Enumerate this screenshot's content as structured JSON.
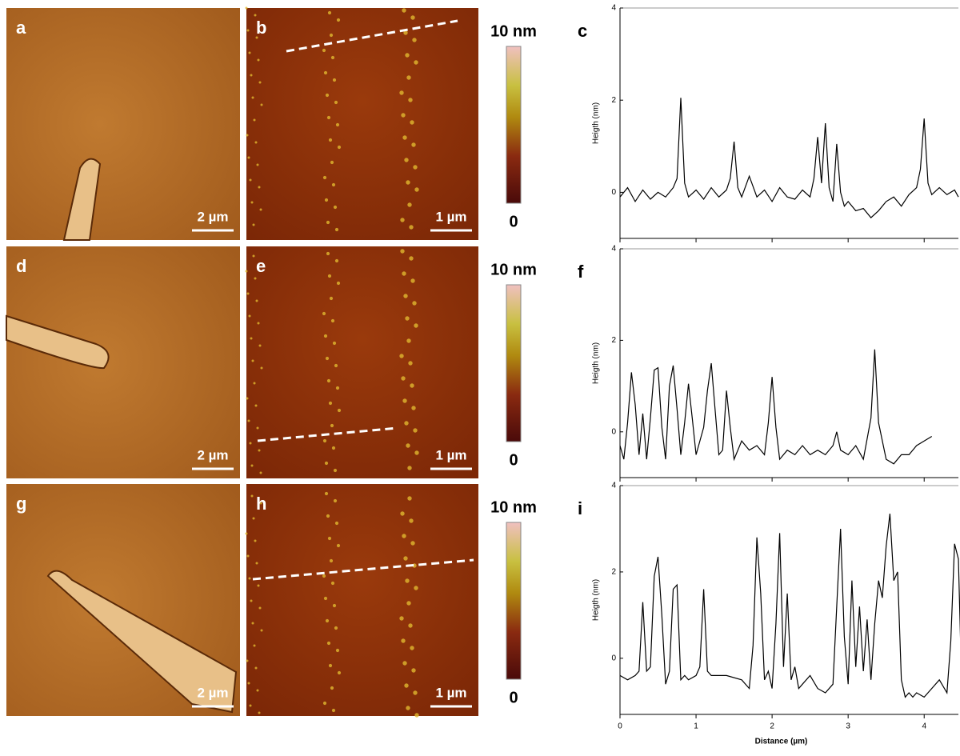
{
  "panels": [
    {
      "letter": "a",
      "scale_bar": "2 µm"
    },
    {
      "letter": "b",
      "scale_bar": "1 µm"
    },
    {
      "letter": "d",
      "scale_bar": "2 µm"
    },
    {
      "letter": "e",
      "scale_bar": "1 µm"
    },
    {
      "letter": "g",
      "scale_bar": "2 µm"
    },
    {
      "letter": "h",
      "scale_bar": "1 µm"
    }
  ],
  "colorbars": [
    {
      "top": "10 nm",
      "bottom": "0"
    },
    {
      "top": "10 nm",
      "bottom": "0"
    },
    {
      "top": "10 nm",
      "bottom": "0"
    }
  ],
  "chart_data": [
    {
      "type": "line",
      "label": "c",
      "ylabel": "Heigth (nm)",
      "color": "#000000",
      "xlim": [
        0,
        4.45
      ],
      "ylim": [
        -1,
        4
      ],
      "xticks": [
        0,
        1,
        2,
        3,
        4
      ],
      "yticks": [
        0,
        2,
        4
      ],
      "xtick_labels": false,
      "x": [
        0,
        0.1,
        0.2,
        0.3,
        0.4,
        0.5,
        0.6,
        0.7,
        0.75,
        0.8,
        0.85,
        0.9,
        1.0,
        1.1,
        1.2,
        1.3,
        1.4,
        1.45,
        1.5,
        1.55,
        1.6,
        1.7,
        1.8,
        1.9,
        2.0,
        2.1,
        2.2,
        2.3,
        2.4,
        2.5,
        2.55,
        2.6,
        2.65,
        2.7,
        2.75,
        2.8,
        2.85,
        2.9,
        2.95,
        3.0,
        3.1,
        3.2,
        3.3,
        3.4,
        3.5,
        3.6,
        3.7,
        3.8,
        3.9,
        3.95,
        4.0,
        4.05,
        4.1,
        4.2,
        4.3,
        4.4,
        4.45
      ],
      "values": [
        -0.1,
        0.1,
        -0.2,
        0.05,
        -0.15,
        0,
        -0.1,
        0.1,
        0.3,
        2.05,
        0.2,
        -0.1,
        0.05,
        -0.15,
        0.1,
        -0.1,
        0.05,
        0.3,
        1.1,
        0.1,
        -0.1,
        0.35,
        -0.1,
        0.05,
        -0.2,
        0.1,
        -0.1,
        -0.15,
        0.05,
        -0.1,
        0.3,
        1.2,
        0.2,
        1.5,
        0.1,
        -0.2,
        1.05,
        0,
        -0.3,
        -0.2,
        -0.4,
        -0.35,
        -0.55,
        -0.4,
        -0.2,
        -0.1,
        -0.3,
        -0.05,
        0.1,
        0.5,
        1.6,
        0.2,
        -0.05,
        0.1,
        -0.05,
        0.05,
        -0.1
      ]
    },
    {
      "type": "line",
      "label": "f",
      "ylabel": "Heigth (nm)",
      "color": "#000000",
      "xlim": [
        0,
        4.45
      ],
      "ylim": [
        -1,
        4
      ],
      "xticks": [
        0,
        1,
        2,
        3,
        4
      ],
      "yticks": [
        0,
        2,
        4
      ],
      "xtick_labels": false,
      "x": [
        0,
        0.05,
        0.1,
        0.15,
        0.2,
        0.25,
        0.3,
        0.35,
        0.4,
        0.45,
        0.5,
        0.55,
        0.6,
        0.65,
        0.7,
        0.75,
        0.8,
        0.85,
        0.9,
        0.95,
        1.0,
        1.1,
        1.15,
        1.2,
        1.25,
        1.3,
        1.35,
        1.4,
        1.45,
        1.5,
        1.6,
        1.7,
        1.8,
        1.9,
        1.95,
        2.0,
        2.05,
        2.1,
        2.2,
        2.3,
        2.4,
        2.5,
        2.6,
        2.7,
        2.8,
        2.85,
        2.9,
        3.0,
        3.1,
        3.2,
        3.3,
        3.35,
        3.4,
        3.5,
        3.6,
        3.7,
        3.8,
        3.9,
        4.0,
        4.1
      ],
      "values": [
        -0.3,
        -0.6,
        0.2,
        1.3,
        0.6,
        -0.5,
        0.4,
        -0.6,
        0.3,
        1.35,
        1.4,
        0.1,
        -0.6,
        1.0,
        1.45,
        0.5,
        -0.5,
        0.2,
        1.05,
        0.3,
        -0.5,
        0.1,
        0.9,
        1.5,
        0.5,
        -0.5,
        -0.4,
        0.9,
        0.1,
        -0.6,
        -0.2,
        -0.4,
        -0.3,
        -0.5,
        0.2,
        1.2,
        0.1,
        -0.6,
        -0.4,
        -0.5,
        -0.3,
        -0.5,
        -0.4,
        -0.5,
        -0.3,
        0,
        -0.4,
        -0.5,
        -0.3,
        -0.6,
        0.3,
        1.8,
        0.2,
        -0.6,
        -0.7,
        -0.5,
        -0.5,
        -0.3,
        -0.2,
        -0.1
      ]
    },
    {
      "type": "line",
      "label": "i",
      "ylabel": "Heigth (nm)",
      "xlabel": "Distance (µm)",
      "color": "#000000",
      "xlim": [
        0,
        4.45
      ],
      "ylim": [
        -1.3,
        4
      ],
      "xticks": [
        0,
        1,
        2,
        3,
        4
      ],
      "yticks": [
        0,
        2,
        4
      ],
      "xtick_labels": true,
      "x": [
        0,
        0.1,
        0.2,
        0.25,
        0.3,
        0.35,
        0.4,
        0.45,
        0.5,
        0.55,
        0.6,
        0.65,
        0.7,
        0.75,
        0.8,
        0.85,
        0.9,
        1.0,
        1.05,
        1.1,
        1.15,
        1.2,
        1.4,
        1.6,
        1.7,
        1.75,
        1.8,
        1.85,
        1.9,
        1.95,
        2.0,
        2.05,
        2.1,
        2.15,
        2.2,
        2.25,
        2.3,
        2.35,
        2.4,
        2.5,
        2.6,
        2.7,
        2.8,
        2.85,
        2.9,
        2.95,
        3.0,
        3.05,
        3.1,
        3.15,
        3.2,
        3.25,
        3.3,
        3.35,
        3.4,
        3.45,
        3.5,
        3.55,
        3.6,
        3.65,
        3.7,
        3.75,
        3.8,
        3.85,
        3.9,
        4.0,
        4.1,
        4.2,
        4.3,
        4.35,
        4.4,
        4.45,
        4.5,
        4.55
      ],
      "values": [
        -0.4,
        -0.5,
        -0.4,
        -0.3,
        1.3,
        -0.3,
        -0.2,
        1.9,
        2.35,
        1.0,
        -0.6,
        -0.3,
        1.6,
        1.7,
        -0.5,
        -0.4,
        -0.5,
        -0.4,
        -0.2,
        1.6,
        -0.3,
        -0.4,
        -0.4,
        -0.5,
        -0.7,
        0.3,
        2.8,
        1.5,
        -0.5,
        -0.3,
        -0.7,
        0.8,
        2.9,
        -0.2,
        1.5,
        -0.5,
        -0.2,
        -0.7,
        -0.6,
        -0.4,
        -0.7,
        -0.8,
        -0.6,
        1.2,
        3.0,
        0.5,
        -0.6,
        1.8,
        -0.2,
        1.2,
        -0.3,
        0.9,
        -0.5,
        0.8,
        1.8,
        1.4,
        2.6,
        3.35,
        1.8,
        2.0,
        -0.5,
        -0.9,
        -0.8,
        -0.9,
        -0.8,
        -0.9,
        -0.7,
        -0.5,
        -0.8,
        0.4,
        2.65,
        2.3,
        -1.1,
        -0.9
      ]
    }
  ]
}
